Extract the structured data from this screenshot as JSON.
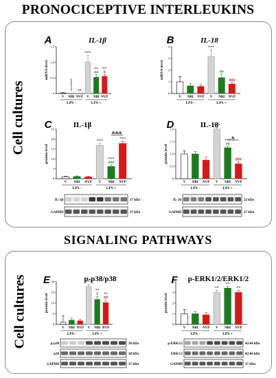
{
  "headings": {
    "top": "PRONOCICEPTIVE INTERLEUKINS",
    "middle": "SIGNALING PATHWAYS",
    "side_label_1": "Cell cultures",
    "side_label_2": "Cell cultures"
  },
  "chart_data": [
    {
      "id": "A",
      "panel": "A",
      "type": "bar",
      "title": "IL-1β",
      "title_italic": true,
      "ylabel": "mRNA level",
      "ylim": [
        0,
        1.5
      ],
      "yticks": [
        0,
        0.5,
        1.0,
        1.5
      ],
      "ytick_labels": [
        "0",
        "0.5",
        "1.0",
        "1.5"
      ],
      "categories": [
        "V",
        "NBI",
        "NVP",
        "V",
        "NBI",
        "NVP"
      ],
      "groups": [
        "LPS -",
        "LPS +"
      ],
      "values": [
        0.02,
        0,
        0,
        1.0,
        0.52,
        0.55
      ],
      "errors": [
        0.01,
        0,
        0,
        0.22,
        0.08,
        0.06
      ],
      "annotations": [
        "",
        "not detected",
        "**",
        "***",
        "**\n##",
        "**\n#"
      ],
      "annotation_colors": [
        "#000000",
        "#000000",
        "#c00000",
        "#555555",
        "#2e8b2e",
        "#c00000"
      ]
    },
    {
      "id": "B",
      "panel": "B",
      "type": "bar",
      "title": "IL-18",
      "title_italic": true,
      "ylabel": "mRNA level",
      "ylim": [
        0,
        4
      ],
      "yticks": [
        0,
        1,
        2,
        3,
        4
      ],
      "ytick_labels": [
        "0",
        "1",
        "2",
        "3",
        "4"
      ],
      "categories": [
        "V",
        "NBI",
        "NVP",
        "V",
        "NBI",
        "NVP"
      ],
      "groups": [
        "LPS -",
        "LPS +"
      ],
      "values": [
        1.0,
        0.65,
        0.6,
        3.15,
        1.35,
        0.8
      ],
      "errors": [
        0.45,
        0.2,
        0.15,
        0.6,
        0.3,
        0.12
      ],
      "annotations": [
        "",
        "",
        "",
        "***",
        "##",
        "###"
      ],
      "annotation_colors": [
        "#000000",
        "#000000",
        "#000000",
        "#555555",
        "#2e8b2e",
        "#c00000"
      ]
    },
    {
      "id": "C",
      "panel": "C",
      "type": "bar",
      "title": "IL-1β",
      "title_italic": false,
      "ylabel": "protein level",
      "ylim": [
        0,
        25
      ],
      "yticks": [
        0,
        5,
        10,
        15,
        20,
        25
      ],
      "ytick_labels": [
        "0",
        "5",
        "10",
        "15",
        "20",
        "25"
      ],
      "categories": [
        "V",
        "NBI",
        "NVP",
        "V",
        "NBI",
        "NVP"
      ],
      "groups": [
        "LPS -",
        "LPS +"
      ],
      "values": [
        1.0,
        1.1,
        0.9,
        16.8,
        6.2,
        17.8
      ],
      "errors": [
        0.3,
        0.3,
        0.3,
        1.0,
        0.8,
        1.2
      ],
      "annotations": [
        "",
        "",
        "",
        "***",
        "***\n###",
        "***"
      ],
      "annotation_colors": [
        "#000000",
        "#000000",
        "#000000",
        "#555555",
        "#2e8b2e",
        "#555555"
      ],
      "bracket": {
        "from": 4,
        "to": 5,
        "label": "&&&"
      },
      "blots": [
        {
          "label": "IL-1β",
          "kda": "17 kDa"
        },
        {
          "label": "GAPDH",
          "kda": "37 kDa"
        }
      ]
    },
    {
      "id": "D",
      "panel": "D",
      "type": "bar",
      "title": "IL-18",
      "title_italic": false,
      "ylabel": "protein level",
      "ylim": [
        0,
        2.0
      ],
      "yticks": [
        0,
        0.5,
        1.0,
        1.5,
        2.0
      ],
      "ytick_labels": [
        "0",
        "0.5",
        "1.0",
        "1.5",
        "2.0"
      ],
      "categories": [
        "V",
        "NBI",
        "NVP",
        "V",
        "NBI",
        "NVP"
      ],
      "groups": [
        "LPS -",
        "LPS +"
      ],
      "values": [
        1.0,
        1.0,
        0.75,
        2.0,
        1.25,
        0.6
      ],
      "errors": [
        0.12,
        0.1,
        0.12,
        0.06,
        0.06,
        0.08
      ],
      "annotations": [
        "",
        "",
        "",
        "***",
        "***\n##",
        "###"
      ],
      "annotation_colors": [
        "#000000",
        "#000000",
        "#000000",
        "#555555",
        "#2e8b2e",
        "#c00000"
      ],
      "bracket": {
        "from": 4,
        "to": 5,
        "label": "&"
      },
      "blots": [
        {
          "label": "IL-18",
          "kda": "22 kDa"
        },
        {
          "label": "GAPDH",
          "kda": "37 kDa"
        }
      ]
    },
    {
      "id": "E",
      "panel": "E",
      "type": "bar",
      "title": "p-p38/p38",
      "title_italic": false,
      "ylabel": "protein level",
      "ylim": [
        0,
        20
      ],
      "yticks": [
        0,
        5,
        10,
        15,
        20
      ],
      "ytick_labels": [
        "0",
        "5",
        "10",
        "15",
        "20"
      ],
      "categories": [
        "V",
        "NBI",
        "NVP",
        "V",
        "NBI",
        "NVP"
      ],
      "groups": [
        "LPS -",
        "LPS +"
      ],
      "values": [
        1.0,
        2.0,
        1.7,
        17.8,
        11.7,
        10.2
      ],
      "errors": [
        3.0,
        1.0,
        0.8,
        1.0,
        1.5,
        1.2
      ],
      "annotations": [
        "",
        "",
        "",
        "***",
        "**\n#",
        "**\n##"
      ],
      "annotation_colors": [
        "#000000",
        "#000000",
        "#000000",
        "#555555",
        "#2e8b2e",
        "#c00000"
      ],
      "blots": [
        {
          "label": "p-p38",
          "kda": "38 kDa"
        },
        {
          "label": "p38",
          "kda": "38 kDa"
        },
        {
          "label": "GAPDH",
          "kda": "37 kDa"
        }
      ]
    },
    {
      "id": "F",
      "panel": "F",
      "type": "bar",
      "title": "p-ERK1/2/ERK1/2",
      "title_italic": false,
      "ylabel": "protein level",
      "ylim": [
        0,
        4
      ],
      "yticks": [
        0,
        1,
        2,
        3,
        4
      ],
      "ytick_labels": [
        "0",
        "1",
        "2",
        "3",
        "4"
      ],
      "categories": [
        "V",
        "NBI",
        "NVP",
        "V",
        "NBI",
        "NVP"
      ],
      "groups": [
        "LPS -",
        "LPS +"
      ],
      "values": [
        1.0,
        1.0,
        0.9,
        3.0,
        3.4,
        3.0
      ],
      "errors": [
        0.4,
        0.2,
        0.2,
        0.2,
        0.15,
        0.2
      ],
      "annotations": [
        "",
        "",
        "",
        "**",
        "**",
        "**"
      ],
      "annotation_colors": [
        "#000000",
        "#000000",
        "#000000",
        "#555555",
        "#2e8b2e",
        "#555555"
      ],
      "blots": [
        {
          "label": "p-ERK1/2",
          "kda": "42/44 kDa"
        },
        {
          "label": "ERK1/2",
          "kda": "42/44 kDa"
        },
        {
          "label": "GAPDH",
          "kda": "37 kDa"
        }
      ]
    }
  ],
  "colors": {
    "control": "#ffffff",
    "lps_vehicle": "#d3d3d3",
    "nbi": "#1f7a1f",
    "nvp": "#d11a1a",
    "frame": "#8a8a8a"
  }
}
